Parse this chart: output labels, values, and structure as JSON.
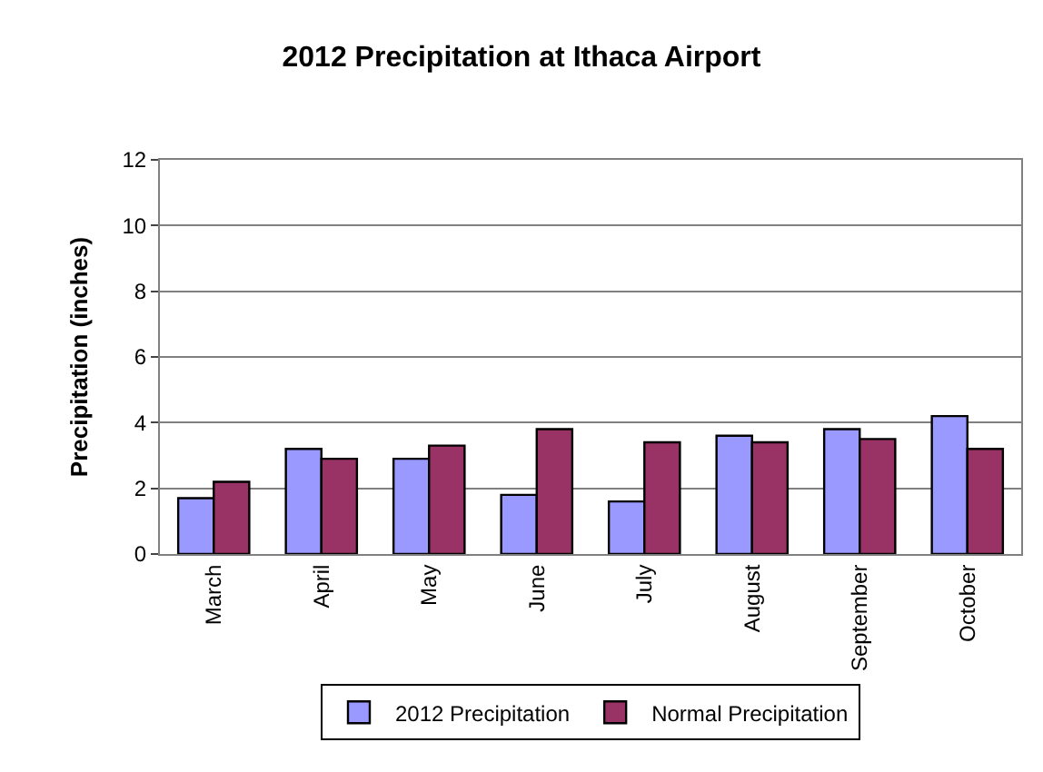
{
  "chart_data": {
    "type": "bar",
    "title": "2012 Precipitation at Ithaca Airport",
    "ylabel": "Precipitation (inches)",
    "categories": [
      "March",
      "April",
      "May",
      "June",
      "July",
      "August",
      "September",
      "October"
    ],
    "series": [
      {
        "name": "2012 Precipitation",
        "color": "#9999ff",
        "values": [
          1.7,
          3.2,
          2.9,
          1.8,
          1.6,
          3.6,
          3.8,
          4.2
        ]
      },
      {
        "name": "Normal Precipitation",
        "color": "#993366",
        "values": [
          2.2,
          2.9,
          3.3,
          3.8,
          3.4,
          3.4,
          3.5,
          3.2
        ]
      }
    ],
    "ylim": [
      0,
      12
    ],
    "yticks": [
      0,
      2,
      4,
      6,
      8,
      10,
      12
    ],
    "grid": "y",
    "legend": "bottom"
  }
}
